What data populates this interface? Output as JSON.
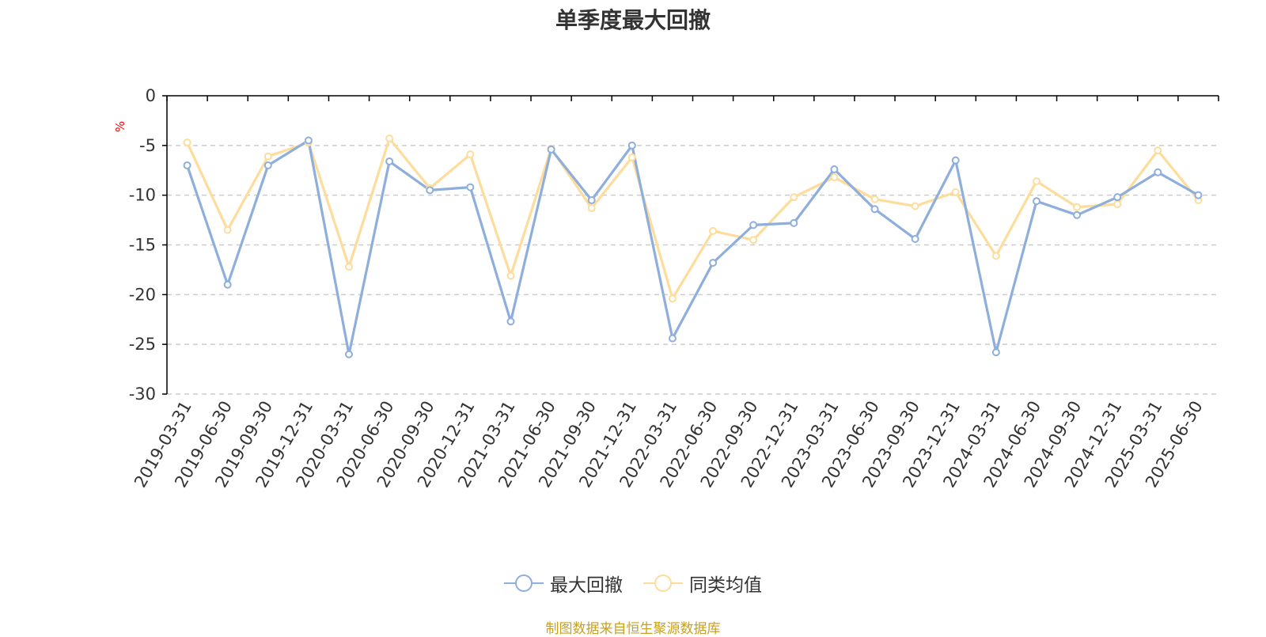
{
  "chart_data": {
    "type": "line",
    "title": "单季度最大回撤",
    "ylabel": "%",
    "ylim": [
      -30,
      0
    ],
    "yticks": [
      0,
      -5,
      -10,
      -15,
      -20,
      -25,
      -30
    ],
    "grid": true,
    "legend_position": "bottom",
    "categories": [
      "2019-03-31",
      "2019-06-30",
      "2019-09-30",
      "2019-12-31",
      "2020-03-31",
      "2020-06-30",
      "2020-09-30",
      "2020-12-31",
      "2021-03-31",
      "2021-06-30",
      "2021-09-30",
      "2021-12-31",
      "2022-03-31",
      "2022-06-30",
      "2022-09-30",
      "2022-12-31",
      "2023-03-31",
      "2023-06-30",
      "2023-09-30",
      "2023-12-31",
      "2024-03-31",
      "2024-06-30",
      "2024-09-30",
      "2024-12-31",
      "2025-03-31",
      "2025-06-30"
    ],
    "series": [
      {
        "name": "最大回撤",
        "color": "#8eaedb",
        "values": [
          -7.0,
          -19.0,
          -7.0,
          -4.5,
          -26.0,
          -6.6,
          -9.5,
          -9.2,
          -22.7,
          -5.4,
          -10.5,
          -5.0,
          -24.4,
          -16.8,
          -13.0,
          -12.8,
          -7.4,
          -11.4,
          -14.4,
          -6.5,
          -25.8,
          -10.6,
          -12.0,
          -10.2,
          -7.7,
          -10.0
        ]
      },
      {
        "name": "同类均值",
        "color": "#fddc9c",
        "values": [
          -4.7,
          -13.5,
          -6.1,
          -4.7,
          -17.2,
          -4.3,
          -9.3,
          -5.9,
          -18.1,
          -5.3,
          -11.3,
          -6.2,
          -20.4,
          -13.6,
          -14.5,
          -10.2,
          -8.2,
          -10.4,
          -11.1,
          -9.7,
          -16.1,
          -8.6,
          -11.2,
          -10.9,
          -5.5,
          -10.5
        ]
      }
    ]
  },
  "source": "制图数据来自恒生聚源数据库",
  "colors": {
    "axis": "#000000",
    "grid": "#cccccc",
    "source": "#c8a020",
    "unit": "#ff0000"
  }
}
